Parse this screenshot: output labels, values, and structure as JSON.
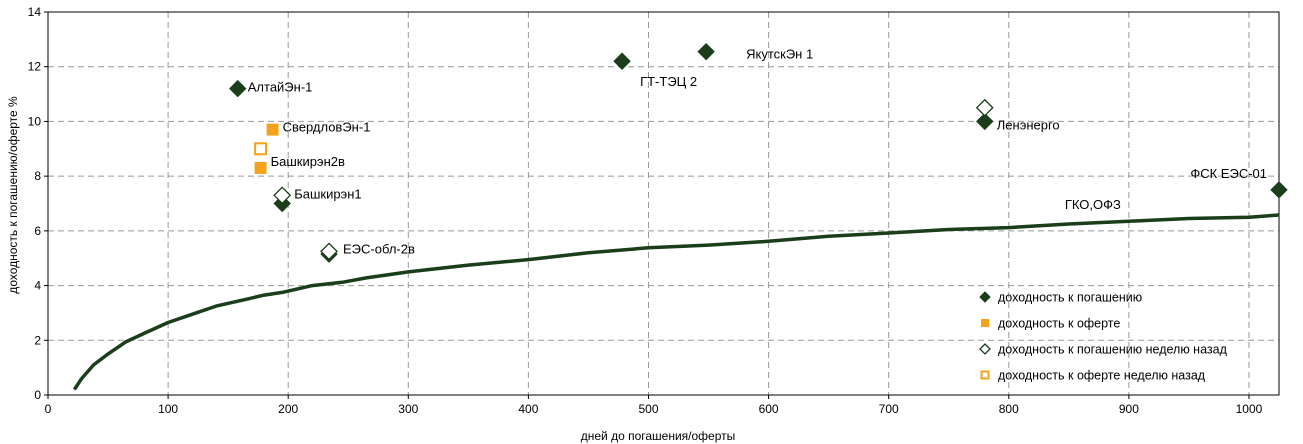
{
  "chart_data": {
    "type": "scatter",
    "title": "",
    "xlabel": "дней до погашения/оферты",
    "ylabel": "доходность к погашению/оферте %",
    "xlim": [
      0,
      1025
    ],
    "ylim": [
      0,
      14
    ],
    "xticks": [
      "0",
      "100",
      "200",
      "300",
      "400",
      "500",
      "600",
      "700",
      "800",
      "900",
      "1000"
    ],
    "yticks": [
      "0",
      "2",
      "4",
      "6",
      "8",
      "10",
      "12",
      "14"
    ],
    "grid": true,
    "legend_position": "bottom-right",
    "colors": {
      "dark_green": "#1a3d1a",
      "orange": "#f5a21b"
    },
    "series": [
      {
        "name": "доходность к погашению",
        "marker": "diamond-filled",
        "points": [
          {
            "x": 158,
            "y": 11.2,
            "label": "АлтайЭн-1"
          },
          {
            "x": 195,
            "y": 7.0,
            "label": ""
          },
          {
            "x": 234,
            "y": 5.15,
            "label": ""
          },
          {
            "x": 478,
            "y": 12.2,
            "label": "ГТ-ТЭЦ 2"
          },
          {
            "x": 548,
            "y": 12.55,
            "label": "ЯкутскЭн 1"
          },
          {
            "x": 780,
            "y": 10.0,
            "label": "Ленэнерго"
          },
          {
            "x": 1025,
            "y": 7.5,
            "label": "ФСК ЕЭС-01"
          }
        ]
      },
      {
        "name": "доходность к оферте",
        "marker": "square-filled",
        "points": [
          {
            "x": 187,
            "y": 9.7,
            "label": "СвердловЭн-1"
          },
          {
            "x": 177,
            "y": 8.3,
            "label": "Башкирэн2в"
          }
        ]
      },
      {
        "name": "доходность к погашению неделю назад",
        "marker": "diamond-open",
        "points": [
          {
            "x": 195,
            "y": 7.3,
            "label": "Башкирэн1"
          },
          {
            "x": 234,
            "y": 5.25,
            "label": "ЕЭС-обл-2в"
          },
          {
            "x": 780,
            "y": 10.5,
            "label": ""
          }
        ]
      },
      {
        "name": "доходность к оферте неделю назад",
        "marker": "square-open",
        "points": [
          {
            "x": 177,
            "y": 9.0,
            "label": ""
          }
        ]
      }
    ],
    "curve": {
      "label": "ГКО,ОФЗ",
      "points": [
        [
          22,
          0.2
        ],
        [
          28,
          0.6
        ],
        [
          38,
          1.1
        ],
        [
          50,
          1.5
        ],
        [
          65,
          1.95
        ],
        [
          80,
          2.25
        ],
        [
          100,
          2.65
        ],
        [
          120,
          2.95
        ],
        [
          140,
          3.25
        ],
        [
          165,
          3.5
        ],
        [
          180,
          3.65
        ],
        [
          195,
          3.75
        ],
        [
          220,
          4.0
        ],
        [
          245,
          4.12
        ],
        [
          265,
          4.28
        ],
        [
          300,
          4.5
        ],
        [
          350,
          4.75
        ],
        [
          400,
          4.95
        ],
        [
          450,
          5.2
        ],
        [
          500,
          5.38
        ],
        [
          550,
          5.48
        ],
        [
          600,
          5.62
        ],
        [
          650,
          5.8
        ],
        [
          700,
          5.92
        ],
        [
          750,
          6.05
        ],
        [
          800,
          6.12
        ],
        [
          850,
          6.25
        ],
        [
          900,
          6.35
        ],
        [
          950,
          6.45
        ],
        [
          1000,
          6.5
        ],
        [
          1025,
          6.58
        ]
      ]
    }
  }
}
